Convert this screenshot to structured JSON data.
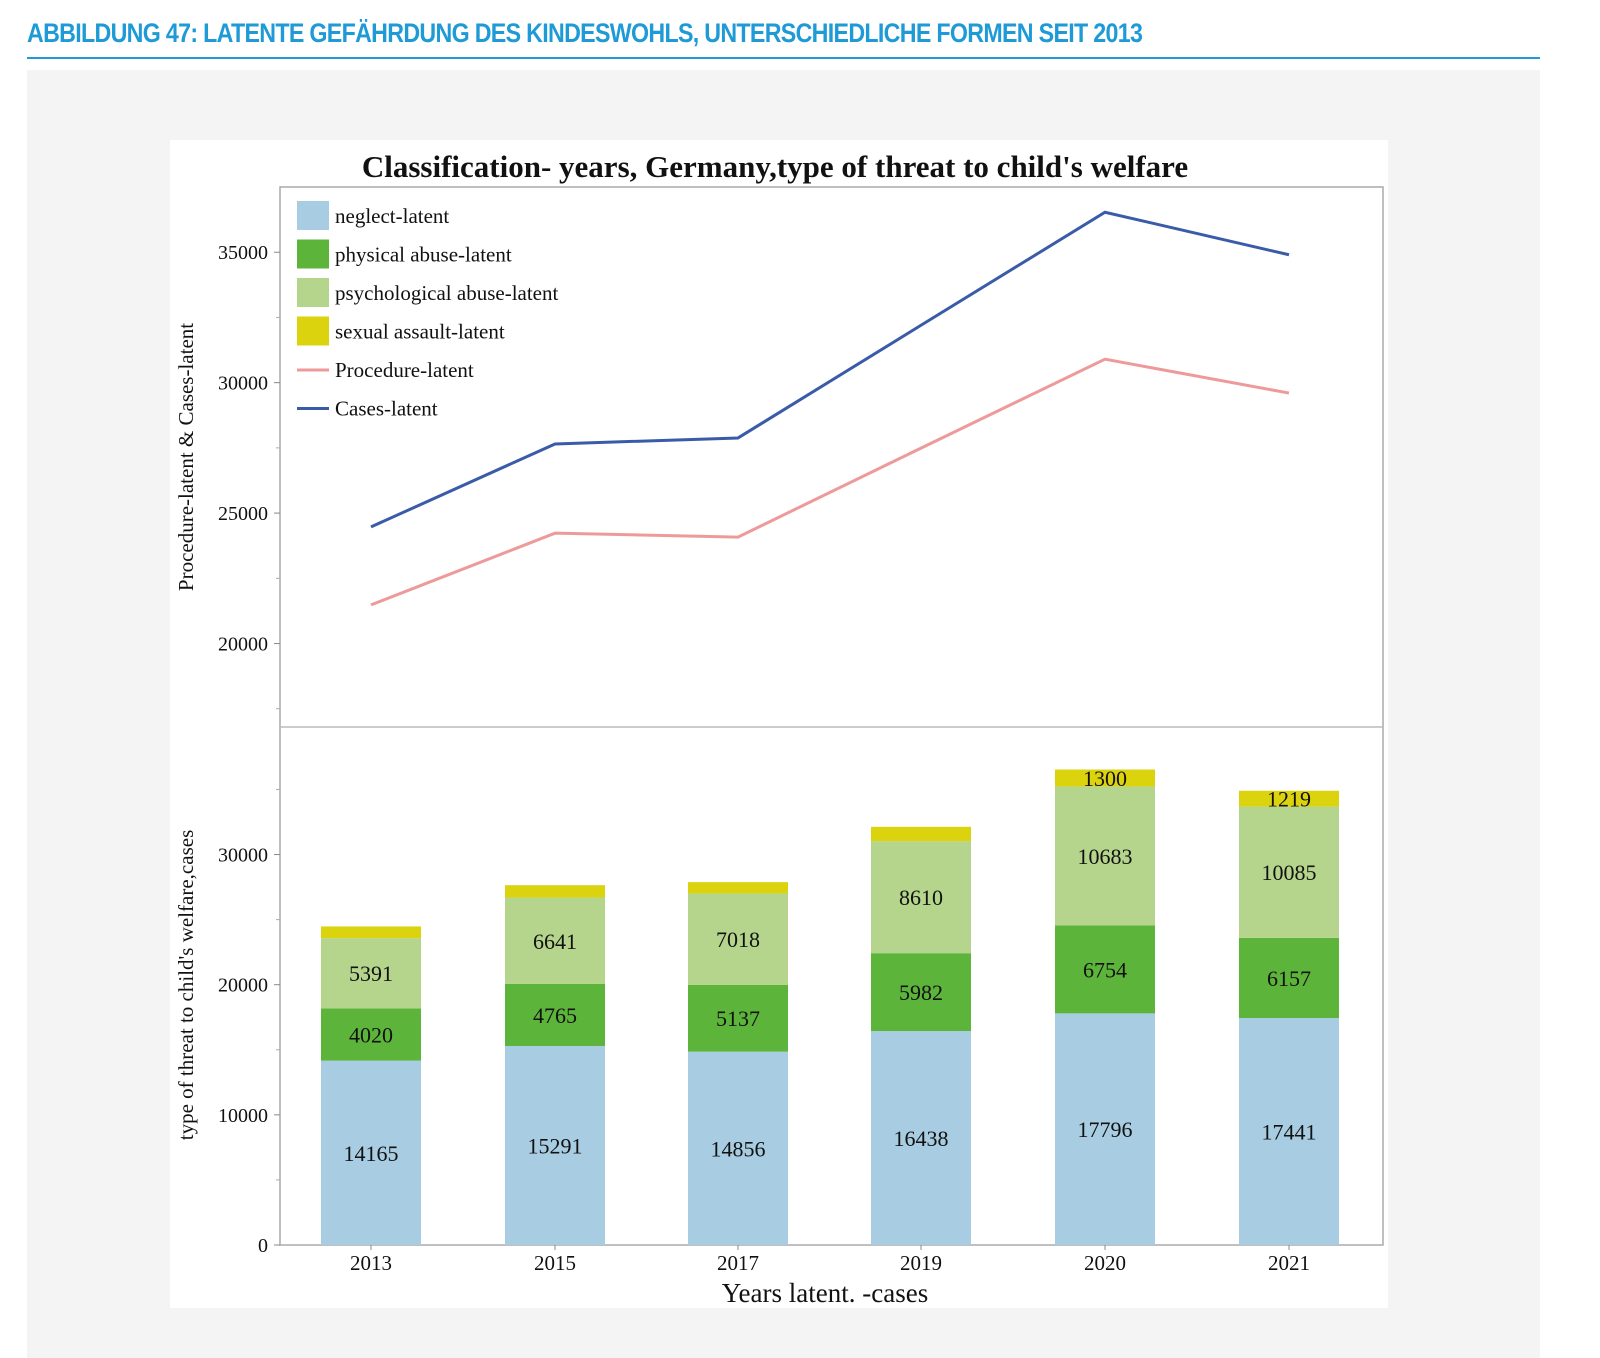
{
  "header": {
    "title": "ABBILDUNG 47: LATENTE GEFÄHRDUNG DES KINDESWOHLS, UNTERSCHIEDLICHE FORMEN SEIT 2013"
  },
  "chart_data": {
    "type": "bar+line",
    "title": "Classification- years, Germany,type of threat to child's welfare",
    "xlabel": "Years latent. -cases",
    "categories": [
      "2013",
      "2015",
      "2017",
      "2019",
      "2020",
      "2021"
    ],
    "legend_position": "top-left",
    "top_panel": {
      "type": "line",
      "ylabel": "Procedure-latent & Cases-latent",
      "ylim": [
        16800,
        37500
      ],
      "yticks": [
        20000,
        25000,
        30000,
        35000
      ],
      "series": [
        {
          "name": "Procedure-latent",
          "color": "#ee9a9a",
          "values": [
            21480,
            24230,
            24080,
            27490,
            30900,
            29600
          ]
        },
        {
          "name": "Cases-latent",
          "color": "#3a5ba8",
          "values": [
            24470,
            27650,
            27880,
            32200,
            36533,
            34902
          ]
        }
      ]
    },
    "bottom_panel": {
      "type": "stacked-bar",
      "ylabel": "type of threat to child's welfare,cases",
      "ylim": [
        0,
        39800
      ],
      "yticks": [
        0,
        10000,
        20000,
        30000
      ],
      "series": [
        {
          "name": "neglect-latent",
          "color": "#a8cde2",
          "values": [
            14165,
            15291,
            14856,
            16438,
            17796,
            17441
          ],
          "labels": [
            "14165",
            "15291",
            "14856",
            "16438",
            "17796",
            "17441"
          ]
        },
        {
          "name": "physical abuse-latent",
          "color": "#5db43b",
          "values": [
            4020,
            4765,
            5137,
            5982,
            6754,
            6157
          ],
          "labels": [
            "4020",
            "4765",
            "5137",
            "5982",
            "6754",
            "6157"
          ]
        },
        {
          "name": "psychological abuse-latent",
          "color": "#b5d58d",
          "values": [
            5391,
            6641,
            7018,
            8610,
            10683,
            10085
          ],
          "labels": [
            "5391",
            "6641",
            "7018",
            "8610",
            "10683",
            "10085"
          ]
        },
        {
          "name": "sexual assault-latent",
          "color": "#dcd30f",
          "values": [
            900,
            950,
            870,
            1100,
            1300,
            1219
          ],
          "labels": [
            "",
            "",
            "",
            "",
            "1300",
            "1219"
          ]
        }
      ]
    }
  }
}
